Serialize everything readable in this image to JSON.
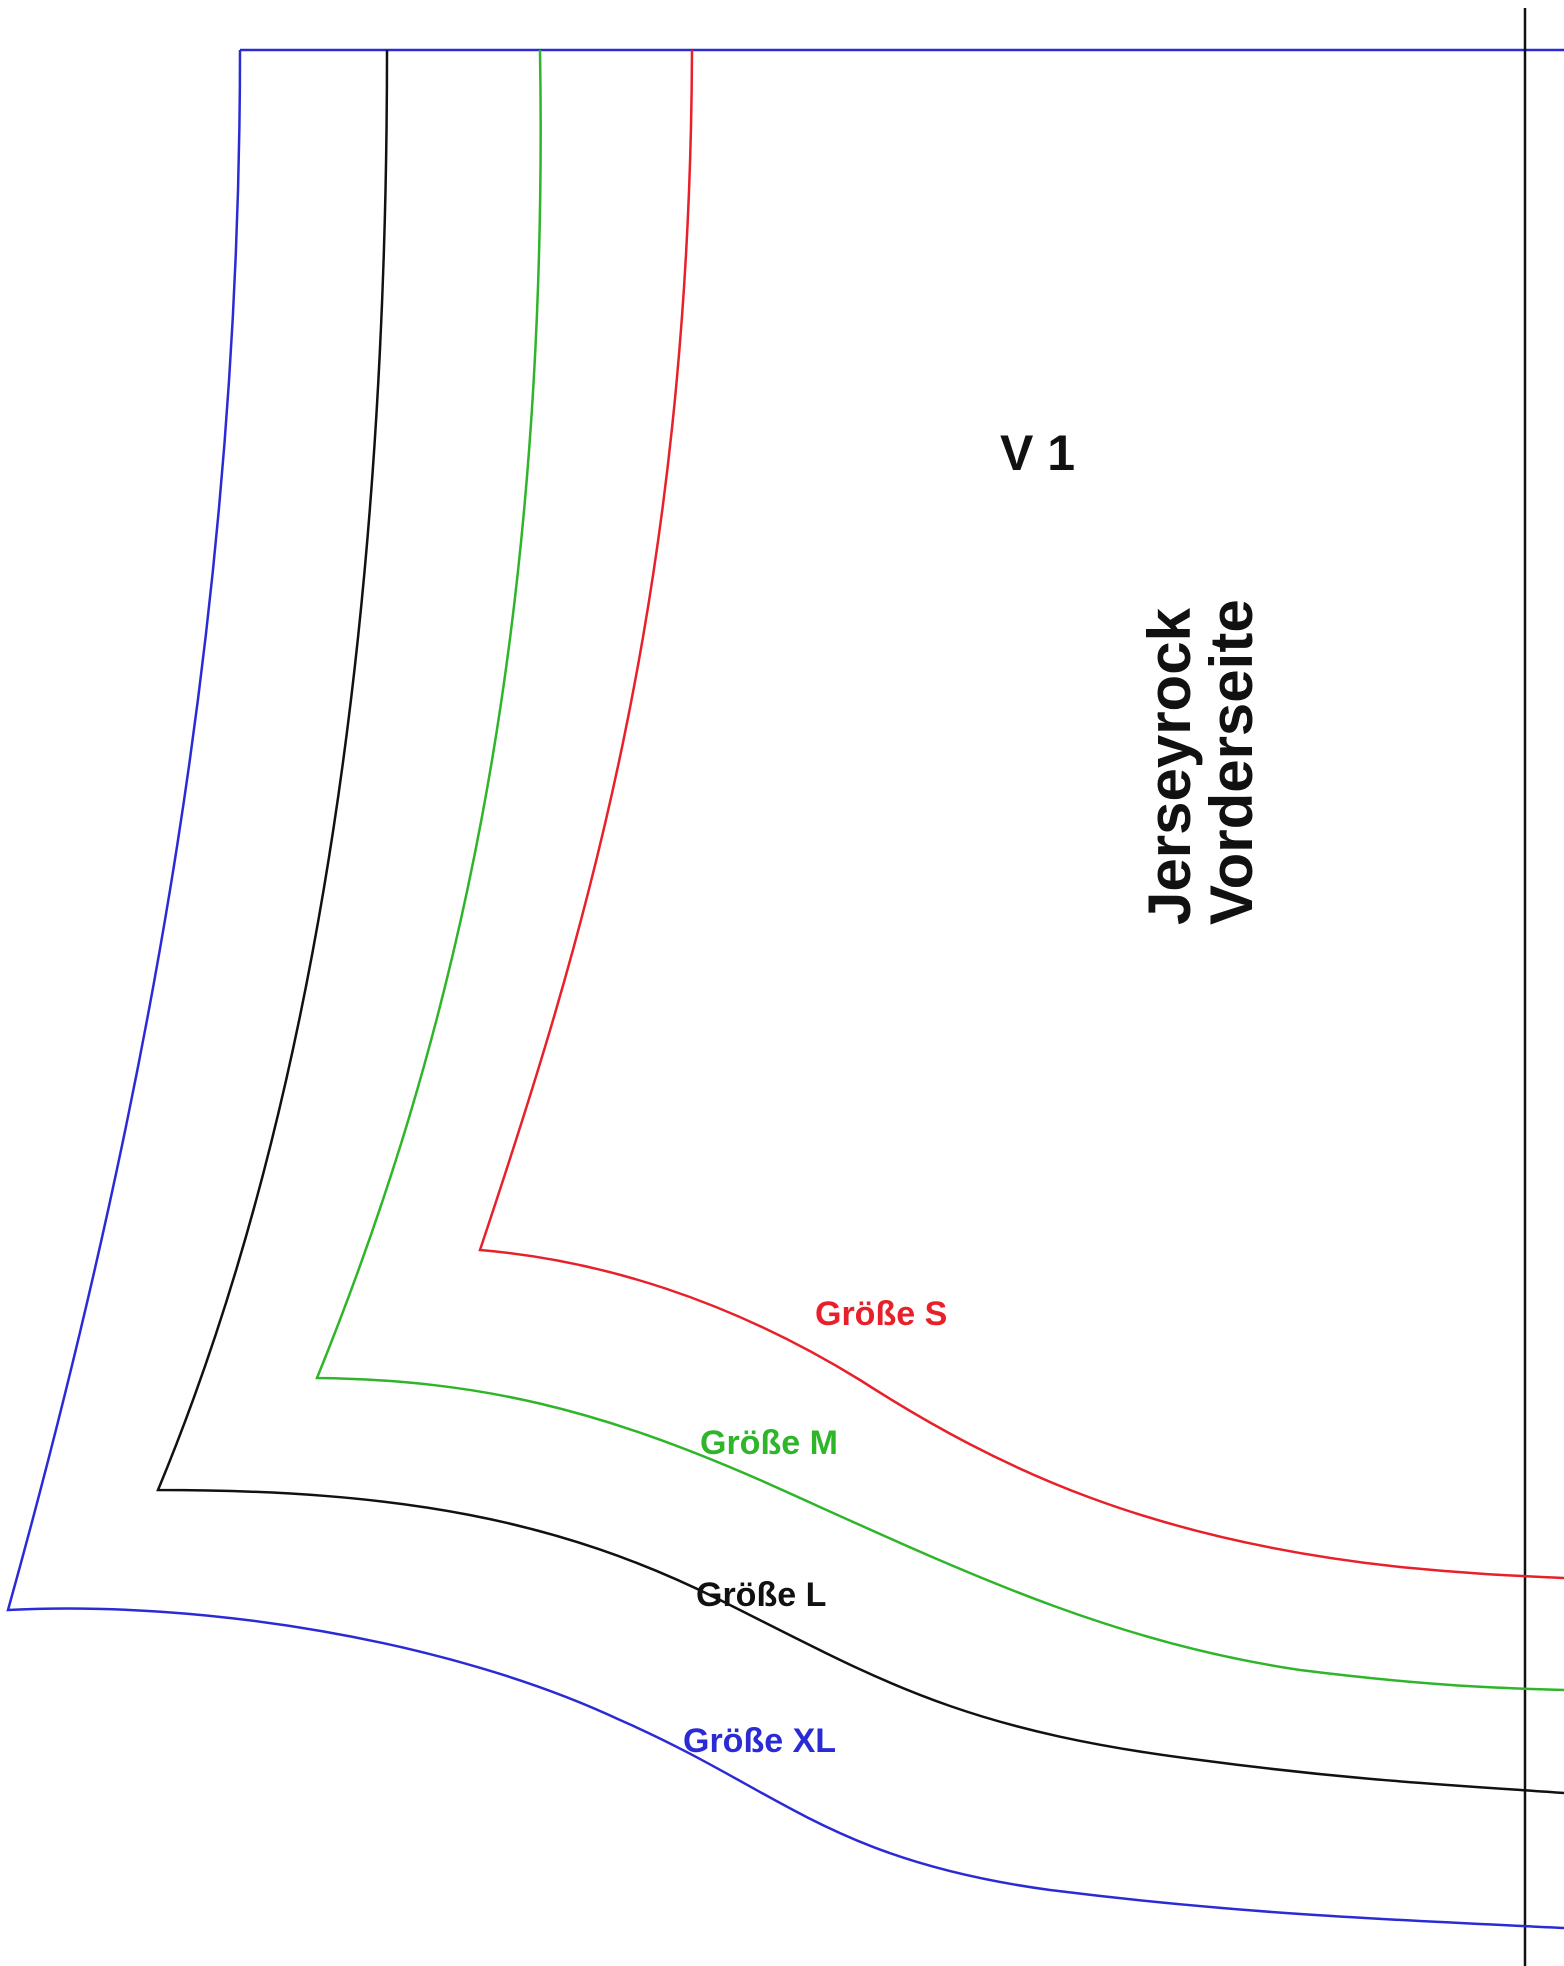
{
  "pattern": {
    "piece_code": "V 1",
    "title_line1": "Jerseyrock",
    "title_line2": "Vorderseite"
  },
  "sizes": [
    {
      "key": "s",
      "label": "Größe S",
      "color": "#e8202a"
    },
    {
      "key": "m",
      "label": "Größe M",
      "color": "#2fb52a"
    },
    {
      "key": "l",
      "label": "Größe L",
      "color": "#111111"
    },
    {
      "key": "xl",
      "label": "Größe XL",
      "color": "#2b2bd6"
    }
  ]
}
